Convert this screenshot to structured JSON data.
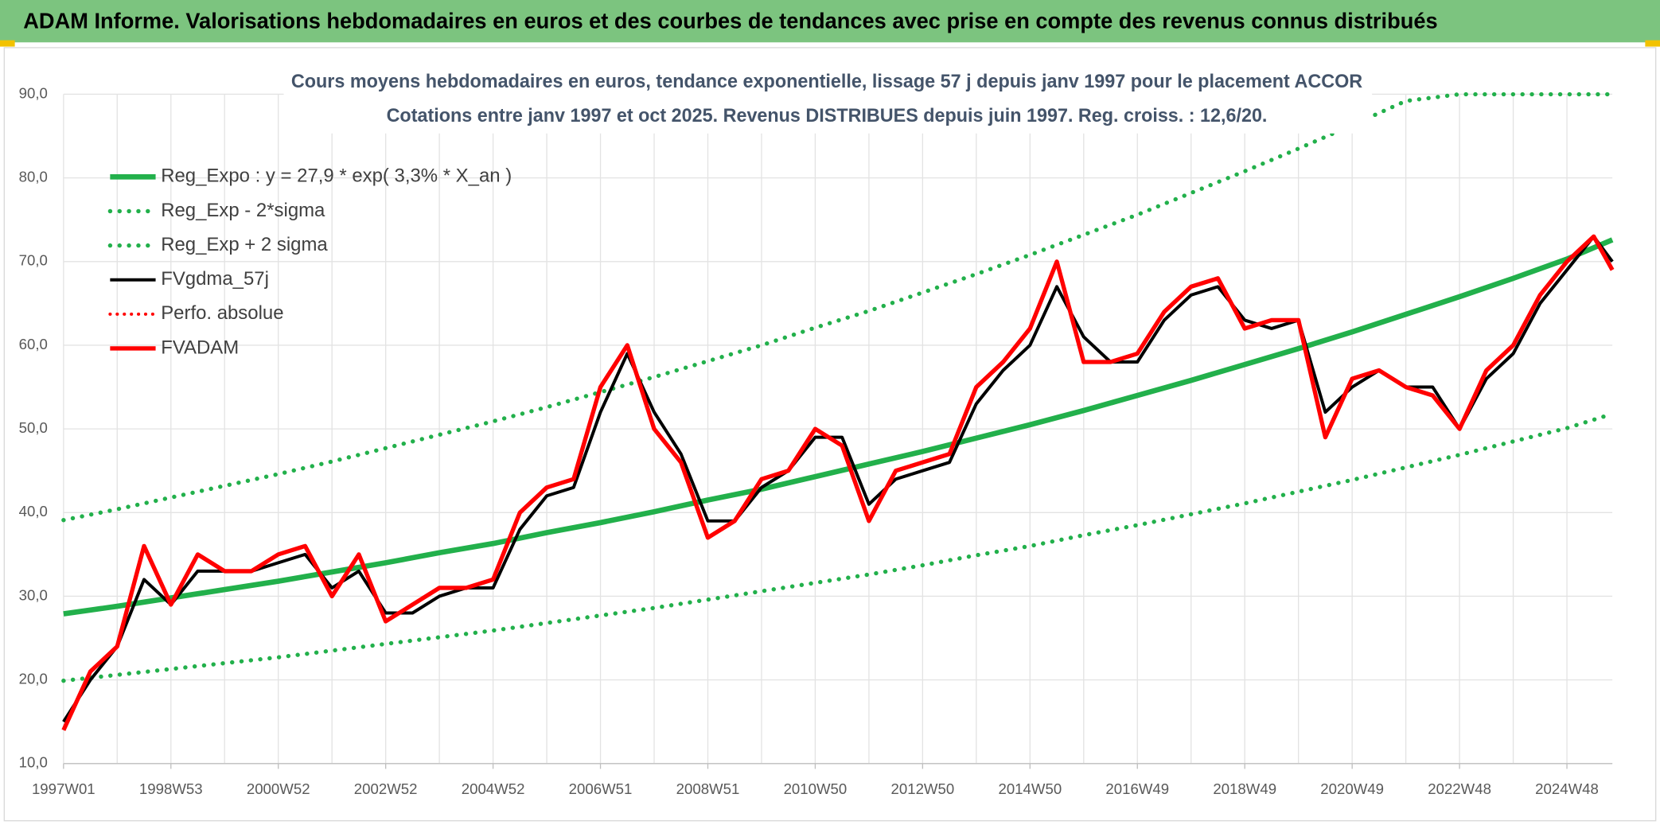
{
  "header": {
    "title": "ADAM Informe. Valorisations hebdomadaires en euros et des courbes de tendances avec prise en compte des revenus connus distribués"
  },
  "chart_data": {
    "type": "line",
    "title": "Cours moyens hebdomadaires en euros, tendance exponentielle, lissage 57 j depuis janv 1997 pour le placement ACCOR",
    "subtitle": "Cotations entre janv 1997 et oct 2025. Revenus DISTRIBUES depuis juin 1997. Reg. croiss. : 12,6/20.",
    "xlim": [
      0,
      1500
    ],
    "xticks": [
      {
        "value": 0,
        "label": "1997W01"
      },
      {
        "value": 104,
        "label": "1998W53"
      },
      {
        "value": 208,
        "label": "2000W52"
      },
      {
        "value": 312,
        "label": "2002W52"
      },
      {
        "value": 416,
        "label": "2004W52"
      },
      {
        "value": 520,
        "label": "2006W51"
      },
      {
        "value": 624,
        "label": "2008W51"
      },
      {
        "value": 728,
        "label": "2010W50"
      },
      {
        "value": 832,
        "label": "2012W50"
      },
      {
        "value": 936,
        "label": "2014W50"
      },
      {
        "value": 1040,
        "label": "2016W49"
      },
      {
        "value": 1144,
        "label": "2018W49"
      },
      {
        "value": 1248,
        "label": "2020W49"
      },
      {
        "value": 1352,
        "label": "2022W48"
      },
      {
        "value": 1456,
        "label": "2024W48"
      }
    ],
    "xminorticks": [
      52,
      156,
      260,
      364,
      468,
      572,
      676,
      780,
      884,
      988,
      1092,
      1196,
      1300,
      1404
    ],
    "ylim": [
      10,
      90
    ],
    "yticks": [
      {
        "value": 10,
        "label": "10,0"
      },
      {
        "value": 20,
        "label": "20,0"
      },
      {
        "value": 30,
        "label": "30,0"
      },
      {
        "value": 40,
        "label": "40,0"
      },
      {
        "value": 50,
        "label": "50,0"
      },
      {
        "value": 60,
        "label": "60,0"
      },
      {
        "value": 70,
        "label": "70,0"
      },
      {
        "value": 80,
        "label": "80,0"
      },
      {
        "value": 90,
        "label": "90,0"
      }
    ],
    "grid": true,
    "legend": "upper left",
    "series": [
      {
        "name": "Reg_Expo : y = 27,9 * exp( 3,3% *  X_an )",
        "color": "#22b04b",
        "style": "solid",
        "width": 5,
        "x": [
          0,
          52,
          104,
          156,
          208,
          260,
          312,
          364,
          416,
          468,
          520,
          572,
          624,
          676,
          728,
          780,
          832,
          884,
          936,
          988,
          1040,
          1092,
          1144,
          1196,
          1248,
          1300,
          1352,
          1404,
          1456,
          1500
        ],
        "values": [
          27.9,
          28.8,
          29.8,
          30.8,
          31.8,
          32.9,
          34.0,
          35.2,
          36.3,
          37.6,
          38.8,
          40.1,
          41.5,
          42.8,
          44.3,
          45.8,
          47.3,
          48.9,
          50.5,
          52.2,
          54.0,
          55.8,
          57.7,
          59.6,
          61.6,
          63.7,
          65.8,
          68.0,
          70.3,
          72.6
        ]
      },
      {
        "name": "Reg_Exp - 2*sigma",
        "color": "#22b04b",
        "style": "dotted",
        "width": 4,
        "x": [
          0,
          52,
          104,
          156,
          208,
          260,
          312,
          364,
          416,
          468,
          520,
          572,
          624,
          676,
          728,
          780,
          832,
          884,
          936,
          988,
          1040,
          1092,
          1144,
          1196,
          1248,
          1300,
          1352,
          1404,
          1456,
          1500
        ],
        "values": [
          19.9,
          20.6,
          21.3,
          22.0,
          22.7,
          23.5,
          24.3,
          25.1,
          25.9,
          26.8,
          27.7,
          28.6,
          29.6,
          30.6,
          31.6,
          32.6,
          33.7,
          34.9,
          36.0,
          37.3,
          38.5,
          39.8,
          41.1,
          42.5,
          43.9,
          45.4,
          46.9,
          48.5,
          50.1,
          51.8
        ]
      },
      {
        "name": "Reg_Exp + 2 sigma",
        "color": "#22b04b",
        "style": "dotted",
        "width": 4,
        "x": [
          0,
          52,
          104,
          156,
          208,
          260,
          312,
          364,
          416,
          468,
          520,
          572,
          624,
          676,
          728,
          780,
          832,
          884,
          936,
          988,
          1040,
          1092,
          1144,
          1196,
          1248,
          1300,
          1352,
          1404,
          1456,
          1500
        ],
        "values": [
          39.1,
          40.4,
          41.8,
          43.2,
          44.6,
          46.1,
          47.7,
          49.3,
          50.9,
          52.6,
          54.4,
          56.2,
          58.1,
          60.0,
          62.1,
          64.1,
          66.3,
          68.5,
          70.8,
          73.2,
          75.6,
          78.2,
          80.8,
          83.5,
          86.3,
          89.2,
          90,
          90,
          90,
          90
        ]
      },
      {
        "name": "FVgdma_57j",
        "color": "#000000",
        "style": "solid",
        "width": 3,
        "x": [
          0,
          26,
          52,
          78,
          104,
          130,
          156,
          182,
          208,
          234,
          260,
          286,
          312,
          338,
          364,
          390,
          416,
          442,
          468,
          494,
          520,
          546,
          572,
          598,
          624,
          650,
          676,
          702,
          728,
          754,
          780,
          806,
          832,
          858,
          884,
          910,
          936,
          962,
          988,
          1014,
          1040,
          1066,
          1092,
          1118,
          1144,
          1170,
          1196,
          1222,
          1248,
          1274,
          1300,
          1326,
          1352,
          1378,
          1404,
          1430,
          1456,
          1482,
          1500
        ],
        "values": [
          15,
          20,
          24,
          32,
          29,
          33,
          33,
          33,
          34,
          35,
          31,
          33,
          28,
          28,
          30,
          31,
          31,
          38,
          42,
          43,
          52,
          59,
          52,
          47,
          39,
          39,
          43,
          45,
          49,
          49,
          41,
          44,
          45,
          46,
          53,
          57,
          60,
          67,
          61,
          58,
          58,
          63,
          66,
          67,
          63,
          62,
          63,
          52,
          55,
          57,
          55,
          55,
          50,
          56,
          59,
          65,
          69,
          73,
          70
        ]
      },
      {
        "name": "Perfo. absolue",
        "color": "#ff0000",
        "style": "dotted",
        "width": 3,
        "x": [],
        "values": []
      },
      {
        "name": "FVADAM",
        "color": "#ff0000",
        "style": "solid",
        "width": 4,
        "x": [
          0,
          26,
          52,
          78,
          104,
          130,
          156,
          182,
          208,
          234,
          260,
          286,
          312,
          338,
          364,
          390,
          416,
          442,
          468,
          494,
          520,
          546,
          572,
          598,
          624,
          650,
          676,
          702,
          728,
          754,
          780,
          806,
          832,
          858,
          884,
          910,
          936,
          962,
          988,
          1014,
          1040,
          1066,
          1092,
          1118,
          1144,
          1170,
          1196,
          1222,
          1248,
          1274,
          1300,
          1326,
          1352,
          1378,
          1404,
          1430,
          1456,
          1482,
          1500
        ],
        "values": [
          14,
          21,
          24,
          36,
          29,
          35,
          33,
          33,
          35,
          36,
          30,
          35,
          27,
          29,
          31,
          31,
          32,
          40,
          43,
          44,
          55,
          60,
          50,
          46,
          37,
          39,
          44,
          45,
          50,
          48,
          39,
          45,
          46,
          47,
          55,
          58,
          62,
          70,
          58,
          58,
          59,
          64,
          67,
          68,
          62,
          63,
          63,
          49,
          56,
          57,
          55,
          54,
          50,
          57,
          60,
          66,
          70,
          73,
          69
        ]
      }
    ]
  }
}
